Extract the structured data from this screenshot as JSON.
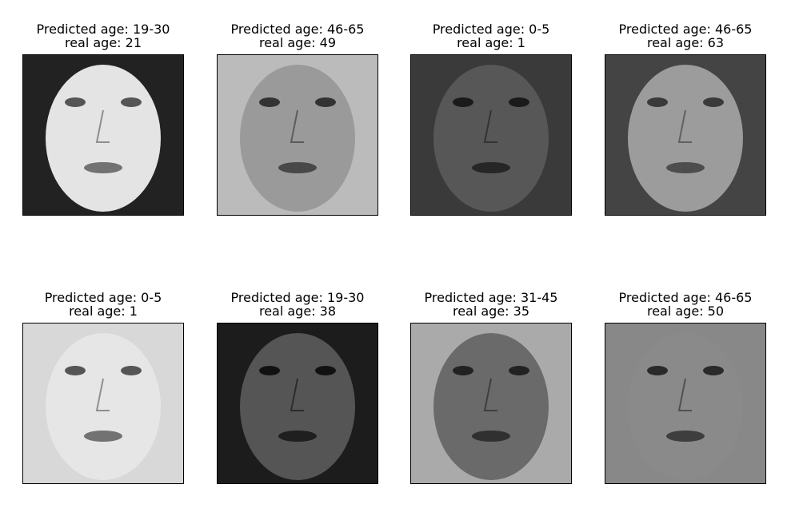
{
  "panels": [
    {
      "predicted": "Predicted age: 19-30",
      "real": "real age: 21"
    },
    {
      "predicted": "Predicted age: 46-65",
      "real": "real age: 49"
    },
    {
      "predicted": "Predicted age: 0-5",
      "real": "real age: 1"
    },
    {
      "predicted": "Predicted age: 46-65",
      "real": "real age: 63"
    },
    {
      "predicted": "Predicted age: 0-5",
      "real": "real age: 1"
    },
    {
      "predicted": "Predicted age: 19-30",
      "real": "real age: 38"
    },
    {
      "predicted": "Predicted age: 31-45",
      "real": "real age: 35"
    },
    {
      "predicted": "Predicted age: 46-65",
      "real": "real age: 50"
    }
  ]
}
